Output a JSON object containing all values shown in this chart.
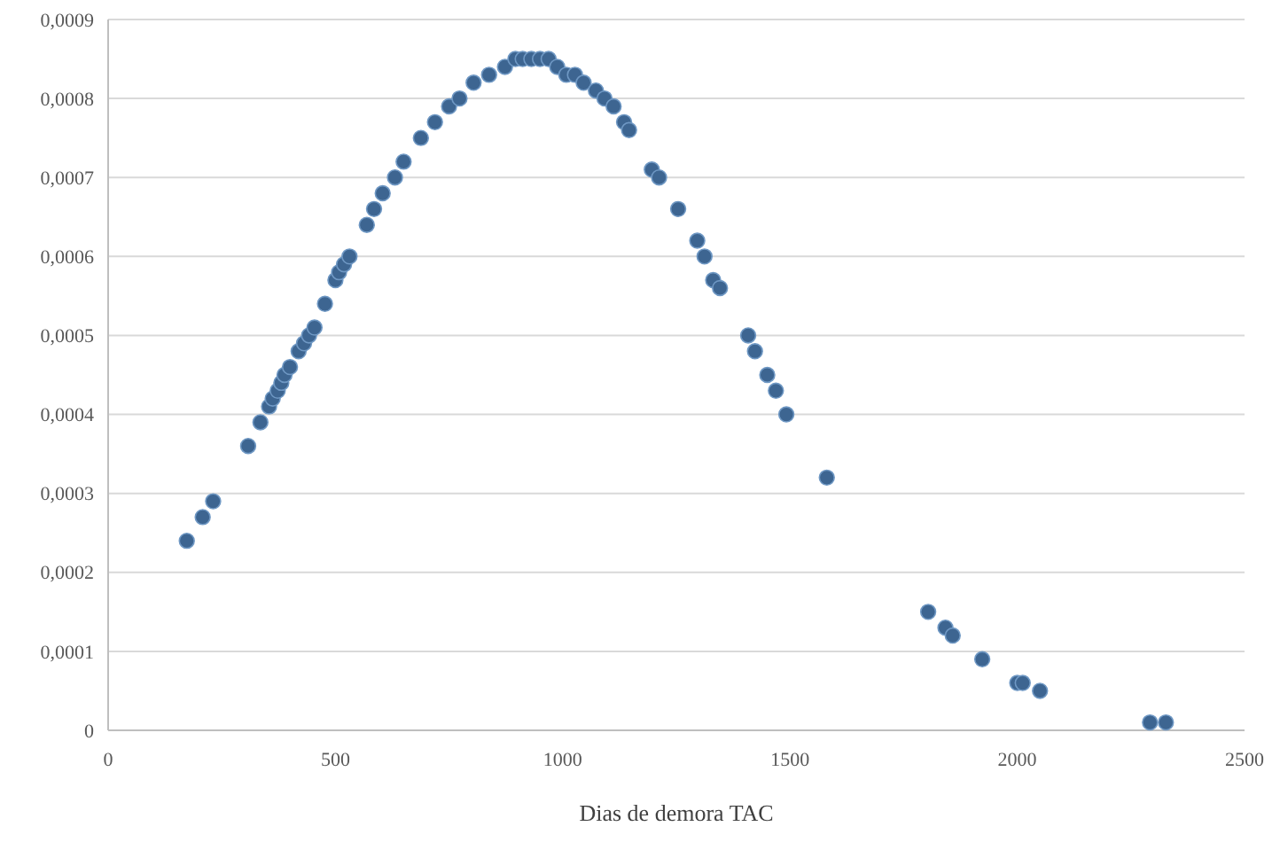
{
  "chart_data": {
    "type": "scatter",
    "xlabel": "Dias de demora TAC",
    "xlim": [
      0,
      2500
    ],
    "xticks": [
      0,
      500,
      1000,
      1500,
      2000,
      2500
    ],
    "ylim": [
      0,
      0.0009
    ],
    "yticks": [
      0,
      {
        "value": 0.0001,
        "label": "0,0001"
      },
      {
        "value": 0.0002,
        "label": "0,0002"
      },
      {
        "value": 0.0003,
        "label": "0,0003"
      },
      {
        "value": 0.0004,
        "label": "0,0004"
      },
      {
        "value": 0.0005,
        "label": "0,0005"
      },
      {
        "value": 0.0006,
        "label": "0,0006"
      },
      {
        "value": 0.0007,
        "label": "0,0007"
      },
      {
        "value": 0.0008,
        "label": "0,0008"
      },
      {
        "value": 0.0009,
        "label": "0,0009"
      }
    ],
    "grid": "y",
    "marker": "circle",
    "series": [
      {
        "color": "#3d6591",
        "x": [
          173,
          208,
          231,
          308,
          335,
          354,
          362,
          373,
          381,
          388,
          400,
          419,
          431,
          442,
          454,
          477,
          500,
          508,
          519,
          531,
          569,
          585,
          604,
          631,
          650,
          688,
          719,
          750,
          773,
          804,
          838,
          873,
          896,
          912,
          931,
          950,
          969,
          988,
          1008,
          1027,
          1046,
          1073,
          1092,
          1112,
          1135,
          1146,
          1196,
          1212,
          1254,
          1296,
          1312,
          1331,
          1346,
          1408,
          1423,
          1450,
          1469,
          1492,
          1581,
          1804,
          1842,
          1858,
          1923,
          2000,
          2012,
          2050,
          2292,
          2327
        ],
        "values": [
          0.00024,
          0.00027,
          0.00029,
          0.00036,
          0.00039,
          0.00041,
          0.00042,
          0.00043,
          0.00044,
          0.00045,
          0.00046,
          0.00048,
          0.00049,
          0.0005,
          0.00051,
          0.00054,
          0.00057,
          0.00058,
          0.00059,
          0.0006,
          0.00064,
          0.00066,
          0.00068,
          0.0007,
          0.00072,
          0.00075,
          0.00077,
          0.00079,
          0.0008,
          0.00082,
          0.00083,
          0.00084,
          0.00085,
          0.00085,
          0.00085,
          0.00085,
          0.00085,
          0.00084,
          0.00083,
          0.00083,
          0.00082,
          0.00081,
          0.0008,
          0.00079,
          0.00077,
          0.00076,
          0.00071,
          0.0007,
          0.00066,
          0.00062,
          0.0006,
          0.00057,
          0.00056,
          0.0005,
          0.00048,
          0.00045,
          0.00043,
          0.0004,
          0.00032,
          0.00015,
          0.00013,
          0.00012,
          9e-05,
          6e-05,
          6e-05,
          5e-05,
          1e-05,
          1e-05
        ]
      }
    ]
  }
}
